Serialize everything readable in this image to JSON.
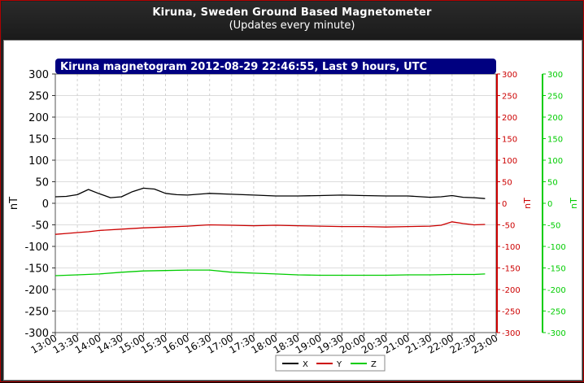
{
  "header": {
    "title": "Kiruna, Sweden Ground Based Magnetometer",
    "subtitle": "(Updates every minute)"
  },
  "chart_data": {
    "type": "line",
    "title": "Kiruna magnetogram 2012-08-29 22:46:55, Last 9 hours, UTC",
    "ylabel": "nT",
    "ylabel_right_1": "nT",
    "ylabel_right_2": "nT",
    "ylim": [
      -300,
      300
    ],
    "yticks": [
      300,
      250,
      200,
      150,
      100,
      50,
      0,
      -50,
      -100,
      -150,
      -200,
      -250,
      -300
    ],
    "xlim": [
      "13:00",
      "23:00"
    ],
    "xticks": [
      "13:00",
      "13:30",
      "14:00",
      "14:30",
      "15:00",
      "15:30",
      "16:00",
      "16:30",
      "17:00",
      "17:30",
      "18:00",
      "18:30",
      "19:00",
      "19:30",
      "20:00",
      "20:30",
      "21:00",
      "21:30",
      "22:00",
      "22:30",
      "23:00"
    ],
    "grid": true,
    "legend_position": "bottom-center",
    "series": [
      {
        "name": "X",
        "color": "#000000",
        "x": [
          "13:00",
          "13:15",
          "13:30",
          "13:45",
          "14:00",
          "14:15",
          "14:30",
          "14:45",
          "15:00",
          "15:15",
          "15:30",
          "15:45",
          "16:00",
          "16:30",
          "17:00",
          "17:30",
          "18:00",
          "18:30",
          "19:00",
          "19:30",
          "20:00",
          "20:30",
          "21:00",
          "21:30",
          "21:45",
          "22:00",
          "22:15",
          "22:30",
          "22:45"
        ],
        "values": [
          15,
          16,
          20,
          32,
          22,
          13,
          15,
          27,
          35,
          33,
          23,
          20,
          19,
          23,
          21,
          19,
          17,
          17,
          18,
          19,
          18,
          17,
          17,
          14,
          15,
          18,
          14,
          13,
          11
        ]
      },
      {
        "name": "Y",
        "color": "#cc0000",
        "x": [
          "13:00",
          "13:15",
          "13:30",
          "13:45",
          "14:00",
          "14:30",
          "15:00",
          "15:30",
          "16:00",
          "16:30",
          "17:00",
          "17:30",
          "18:00",
          "18:30",
          "19:00",
          "19:30",
          "20:00",
          "20:30",
          "21:00",
          "21:30",
          "21:45",
          "22:00",
          "22:15",
          "22:30",
          "22:45"
        ],
        "values": [
          -72,
          -70,
          -68,
          -66,
          -63,
          -60,
          -57,
          -55,
          -53,
          -50,
          -51,
          -52,
          -51,
          -52,
          -53,
          -54,
          -54,
          -55,
          -54,
          -53,
          -51,
          -43,
          -47,
          -50,
          -49
        ]
      },
      {
        "name": "Z",
        "color": "#00cc00",
        "x": [
          "13:00",
          "13:30",
          "14:00",
          "14:30",
          "15:00",
          "15:30",
          "16:00",
          "16:30",
          "17:00",
          "17:30",
          "18:00",
          "18:30",
          "19:00",
          "19:30",
          "20:00",
          "20:30",
          "21:00",
          "21:30",
          "22:00",
          "22:30",
          "22:45"
        ],
        "values": [
          -168,
          -166,
          -164,
          -160,
          -157,
          -156,
          -155,
          -155,
          -160,
          -162,
          -164,
          -166,
          -167,
          -167,
          -167,
          -167,
          -166,
          -166,
          -165,
          -165,
          -164
        ]
      }
    ]
  }
}
